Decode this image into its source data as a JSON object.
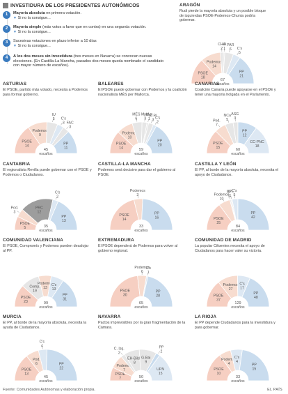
{
  "header": {
    "title": "INVESTIDURA DE LOS PRESIDENTES AUTONÓMICOS",
    "rules": [
      {
        "num": "1",
        "bold": "Mayoría absoluta",
        "rest": " en primera votación.",
        "sub": "Si no la consigue..."
      },
      {
        "num": "2",
        "bold": "Mayoría simple",
        "rest": " (más votos a favor que en contra) en una segunda votación.",
        "sub": "Si no la consigue..."
      },
      {
        "num": "3",
        "bold": "",
        "rest": "Sucesivas votaciones en plazo inferior a 10 días",
        "sub": "Si no la consigue..."
      },
      {
        "num": "4",
        "bold": "A los dos meses sin investidura",
        "rest": " (tres meses en Navarra) se convocan nuevas elecciones. (En Castilla-La Mancha, pasados dos meses queda nombrado el candidato con mayor número de escaños).",
        "sub": ""
      }
    ]
  },
  "colors": {
    "pp": "#c9dcee",
    "psoe": "#f6cfc2",
    "podemos": "#f7dccf",
    "cs": "#dde8f3",
    "other": "#e6e6e6",
    "dark": "#9d9d9d",
    "text": "#555555",
    "divider": "#ffffff"
  },
  "seats_label": "escaños",
  "chart_data": [
    {
      "type": "pie",
      "region": "ARAGÓN",
      "description": "Rudi pierde la mayoría absoluta y un posible bloque de izquierdas PSOE-Podemos-Chunta podría gobernar.",
      "total": "67",
      "series": [
        {
          "name": "PSOE",
          "value": 18,
          "color": "psoe"
        },
        {
          "name": "Podemos",
          "value": 14,
          "color": "podemos"
        },
        {
          "name": "CHA",
          "value": 2,
          "color": "other"
        },
        {
          "name": "IU",
          "value": 1,
          "color": "other"
        },
        {
          "name": "PAR",
          "value": 6,
          "color": "other"
        },
        {
          "name": "C's",
          "value": 5,
          "color": "cs"
        },
        {
          "name": "PP",
          "value": 21,
          "color": "pp"
        }
      ]
    },
    {
      "type": "pie",
      "region": "ASTURIAS",
      "description": "El PSOE, partido más votado, necesita a Podemos para formar gobierno.",
      "total": "45",
      "series": [
        {
          "name": "PSOE",
          "value": 14,
          "color": "psoe"
        },
        {
          "name": "Podemos",
          "value": 9,
          "color": "podemos"
        },
        {
          "name": "IU",
          "value": 5,
          "color": "other"
        },
        {
          "name": "C's",
          "value": 3,
          "color": "cs"
        },
        {
          "name": "FAC",
          "value": 3,
          "color": "other"
        },
        {
          "name": "PP",
          "value": 11,
          "color": "pp"
        }
      ]
    },
    {
      "type": "pie",
      "region": "BALEARES",
      "description": "El PSOE puede gobernar con Podemos y la coalición nacionalista MÉS per Mallorca.",
      "total": "59",
      "series": [
        {
          "name": "PSOE",
          "value": 14,
          "color": "psoe"
        },
        {
          "name": "Podemos",
          "value": 10,
          "color": "podemos"
        },
        {
          "name": "MÉS",
          "value": 6,
          "color": "other"
        },
        {
          "name": "MpM",
          "value": 3,
          "color": "other"
        },
        {
          "name": "GxF",
          "value": 1,
          "color": "other"
        },
        {
          "name": "El PI",
          "value": 3,
          "color": "other"
        },
        {
          "name": "C's",
          "value": 2,
          "color": "cs"
        },
        {
          "name": "PP",
          "value": 20,
          "color": "pp"
        }
      ]
    },
    {
      "type": "pie",
      "region": "CANARIAS",
      "description": "Coalición Canaria puede apoyarse en el PSOE y tener una mayoría holgada en el Parlamento.",
      "total": "60",
      "series": [
        {
          "name": "PSOE",
          "value": 15,
          "color": "psoe"
        },
        {
          "name": "Pod.",
          "value": 7,
          "color": "podemos"
        },
        {
          "name": "NCa",
          "value": 5,
          "color": "other"
        },
        {
          "name": "ASG",
          "value": 3,
          "color": "other"
        },
        {
          "name": "PP",
          "value": 12,
          "color": "pp"
        },
        {
          "name": "CC-PNC",
          "value": 18,
          "color": "cs"
        }
      ]
    },
    {
      "type": "pie",
      "region": "CANTABRIA",
      "description": "El regionalista Revilla puede gobernar con el PSOE y Podemos o Ciudadanos.",
      "total": "35",
      "series": [
        {
          "name": "PSOE",
          "value": 5,
          "color": "psoe"
        },
        {
          "name": "Pod.",
          "value": 3,
          "color": "podemos"
        },
        {
          "name": "PRC",
          "value": 12,
          "color": "dark"
        },
        {
          "name": "C's",
          "value": 2,
          "color": "cs"
        },
        {
          "name": "PP",
          "value": 13,
          "color": "pp"
        }
      ]
    },
    {
      "type": "pie",
      "region": "CASTILLA-LA MANCHA",
      "description": "Podemos será decisivo para dar el gobierno al PSOE.",
      "total": "33",
      "series": [
        {
          "name": "PSOE",
          "value": 14,
          "color": "psoe"
        },
        {
          "name": "Podemos",
          "value": 3,
          "color": "podemos"
        },
        {
          "name": "PP",
          "value": 16,
          "color": "pp"
        }
      ]
    },
    {
      "type": "pie",
      "region": "CASTILLA Y LEÓN",
      "description": "El PP, al borde de la mayoría absoluta, necesita el apoyo de Ciudadanos.",
      "total": "84",
      "series": [
        {
          "name": "PSOE",
          "value": 25,
          "color": "psoe"
        },
        {
          "name": "Podemos",
          "value": 10,
          "color": "podemos"
        },
        {
          "name": "IU",
          "value": 1,
          "color": "other"
        },
        {
          "name": "UPL",
          "value": 1,
          "color": "other"
        },
        {
          "name": "C's",
          "value": 5,
          "color": "cs"
        },
        {
          "name": "PP",
          "value": 42,
          "color": "pp"
        }
      ]
    },
    {
      "type": "pie",
      "region": "COMUNIDAD VALENCIANA",
      "description": "El PSOE, Compromís y Podemos pueden desalojar al PP.",
      "total": "99",
      "series": [
        {
          "name": "PSOE",
          "value": 23,
          "color": "psoe"
        },
        {
          "name": "Comp.",
          "value": 19,
          "color": "other"
        },
        {
          "name": "Podemos",
          "value": 13,
          "color": "podemos"
        },
        {
          "name": "C's",
          "value": 13,
          "color": "cs"
        },
        {
          "name": "PP",
          "value": 31,
          "color": "pp"
        }
      ]
    },
    {
      "type": "pie",
      "region": "EXTREMADURA",
      "description": "El PSOE dependerá de Podemos para volver al gobierno regional.",
      "total": "65",
      "series": [
        {
          "name": "PSOE",
          "value": 30,
          "color": "psoe"
        },
        {
          "name": "Podemos",
          "value": 6,
          "color": "podemos"
        },
        {
          "name": "C's",
          "value": 1,
          "color": "cs"
        },
        {
          "name": "PP",
          "value": 28,
          "color": "pp"
        }
      ]
    },
    {
      "type": "pie",
      "region": "COMUNIDAD DE MADRID",
      "description": "La popular Cifuentes necesita el apoyo de Ciudadanos para hacer valer su victoria.",
      "total": "129",
      "series": [
        {
          "name": "PSOE",
          "value": 37,
          "color": "psoe"
        },
        {
          "name": "Podemos",
          "value": 27,
          "color": "podemos"
        },
        {
          "name": "C's",
          "value": 17,
          "color": "cs"
        },
        {
          "name": "PP",
          "value": 48,
          "color": "pp"
        }
      ]
    },
    {
      "type": "pie",
      "region": "MURCIA",
      "description": "El PP, al borde de la mayoría absoluta, necesita la ayuda de Ciudadanos.",
      "total": "45",
      "series": [
        {
          "name": "PSOE",
          "value": 13,
          "color": "psoe"
        },
        {
          "name": "Pod.",
          "value": 6,
          "color": "podemos"
        },
        {
          "name": "C's",
          "value": 4,
          "color": "cs"
        },
        {
          "name": "PP",
          "value": 22,
          "color": "pp"
        }
      ]
    },
    {
      "type": "pie",
      "region": "NAVARRA",
      "description": "Pactos imprevisibles por la gran fragmentación de la Cámara.",
      "total": "50",
      "series": [
        {
          "name": "PSOE",
          "value": 7,
          "color": "psoe"
        },
        {
          "name": "Podemos",
          "value": 7,
          "color": "podemos"
        },
        {
          "name": "C. Izq.",
          "value": 2,
          "color": "other"
        },
        {
          "name": "EH-Bildu",
          "value": 8,
          "color": "other"
        },
        {
          "name": "G-Bai",
          "value": 9,
          "color": "other"
        },
        {
          "name": "PP",
          "value": 2,
          "color": "pp"
        },
        {
          "name": "UPN",
          "value": 15,
          "color": "cs"
        }
      ]
    },
    {
      "type": "pie",
      "region": "LA RIOJA",
      "description": "El PP depende Ciudadanos para la investidura y para gobernar.",
      "total": "33",
      "series": [
        {
          "name": "PSOE",
          "value": 10,
          "color": "psoe"
        },
        {
          "name": "Podemos",
          "value": 4,
          "color": "podemos"
        },
        {
          "name": "C's",
          "value": 4,
          "color": "cs"
        },
        {
          "name": "PP",
          "value": 15,
          "color": "pp"
        }
      ]
    }
  ],
  "footer": {
    "source": "Fuente: Comunidades Autónomas y elaboración propia.",
    "brand": "EL PAÍS"
  }
}
